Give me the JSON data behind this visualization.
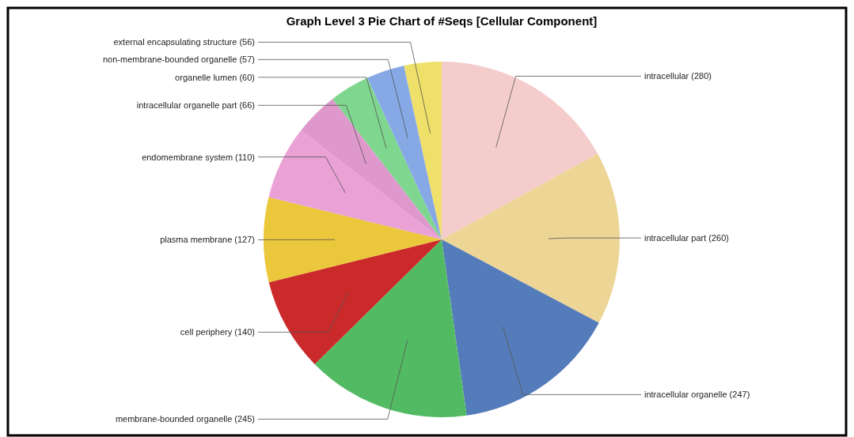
{
  "chart_data": {
    "type": "pie",
    "title": "Graph Level 3 Pie Chart of #Seqs [Cellular Component]",
    "categories": [
      "intracellular (280)",
      "intracellular part (260)",
      "intracellular organelle (247)",
      "membrane-bounded organelle (245)",
      "cell periphery (140)",
      "plasma membrane (127)",
      "endomembrane system (110)",
      "intracellular organelle part (66)",
      "organelle lumen (60)",
      "non-membrane-bounded organelle (57)",
      "external encapsulating structure (56)"
    ],
    "values": [
      280,
      260,
      247,
      245,
      140,
      127,
      110,
      66,
      60,
      57,
      56
    ],
    "colors": [
      "#f4cccc",
      "#edd596",
      "#557cba",
      "#53ba64",
      "#cb2a2a",
      "#ebc73c",
      "#e9a1d6",
      "#df98cc",
      "#7fd68e",
      "#86a9e6",
      "#efe06a"
    ]
  }
}
